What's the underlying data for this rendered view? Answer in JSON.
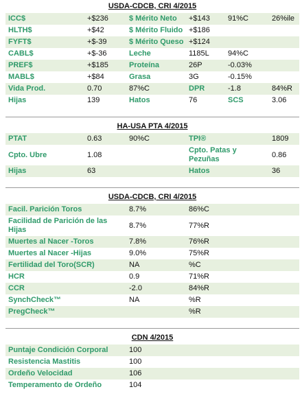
{
  "sections": [
    {
      "title": "USDA-CDCB, CRI 4/2015",
      "rows": [
        [
          {
            "label": "ICC$"
          },
          "+$236",
          {
            "label": "$ Mérito Neto"
          },
          "+$143",
          "91%C",
          "26%ile"
        ],
        [
          {
            "label": "HLTH$"
          },
          "+$42",
          {
            "label": "$ Mérito Fluido"
          },
          "+$186"
        ],
        [
          {
            "label": "FYFT$"
          },
          "+$-39",
          {
            "label": "$ Mérito Queso"
          },
          "+$124"
        ],
        [
          {
            "label": "CABL$"
          },
          "+$-36",
          {
            "label": "Leche"
          },
          "1185L",
          "94%C"
        ],
        [
          {
            "label": "PREF$"
          },
          "+$185",
          {
            "label": "Proteína"
          },
          "26P",
          "-0.03%"
        ],
        [
          {
            "label": "MABL$"
          },
          "+$84",
          {
            "label": "Grasa"
          },
          "3G",
          "-0.15%"
        ],
        [
          {
            "label": "Vida Prod."
          },
          "0.70",
          "87%C",
          {
            "label": "DPR"
          },
          "-1.8",
          "84%R"
        ],
        [
          {
            "label": "Hijas"
          },
          "139",
          {
            "label": "Hatos"
          },
          "76",
          {
            "label": "SCS"
          },
          "3.06"
        ]
      ]
    },
    {
      "title": "HA-USA PTA 4/2015",
      "rows": [
        [
          {
            "label": "PTAT"
          },
          "0.63",
          "90%C",
          {
            "label": "TPI®"
          },
          null,
          "1809"
        ],
        [
          {
            "label": "Cpto. Ubre"
          },
          "1.08",
          null,
          {
            "label": "Cpto. Patas y Pezuñas"
          },
          null,
          "0.86"
        ],
        [
          {
            "label": "Hijas"
          },
          "63",
          null,
          {
            "label": "Hatos"
          },
          null,
          "36"
        ]
      ]
    },
    {
      "title": "USDA-CDCB, CRI 4/2015",
      "rows": [
        [
          {
            "label": "Facil. Parición Toros"
          },
          null,
          "8.7%",
          "86%C"
        ],
        [
          {
            "label": "Facilidad de Parición de las Hijas"
          },
          null,
          "8.7%",
          "77%R"
        ],
        [
          {
            "label": "Muertes al Nacer -Toros"
          },
          null,
          "7.8%",
          "76%R"
        ],
        [
          {
            "label": "Muertes al Nacer -Hijas"
          },
          null,
          "9.0%",
          "75%R"
        ],
        [
          {
            "label": "Fertilidad del Toro(SCR)"
          },
          null,
          "NA",
          "%C"
        ],
        [
          {
            "label": "HCR"
          },
          null,
          "0.9",
          "71%R"
        ],
        [
          {
            "label": "CCR"
          },
          null,
          "-2.0",
          "84%R"
        ],
        [
          {
            "label": "SynchCheck™"
          },
          null,
          "NA",
          "%R"
        ],
        [
          {
            "label": "PregCheck™"
          },
          null,
          null,
          "%R"
        ]
      ]
    },
    {
      "title": "CDN 4/2015",
      "rows": [
        [
          {
            "label": "Puntaje Condición Corporal"
          },
          null,
          "100"
        ],
        [
          {
            "label": "Resistencia Mastitis"
          },
          null,
          "100"
        ],
        [
          {
            "label": "Ordeño Velocidad"
          },
          null,
          "106"
        ],
        [
          {
            "label": "Temperamento de Ordeño"
          },
          null,
          "104"
        ]
      ]
    }
  ]
}
